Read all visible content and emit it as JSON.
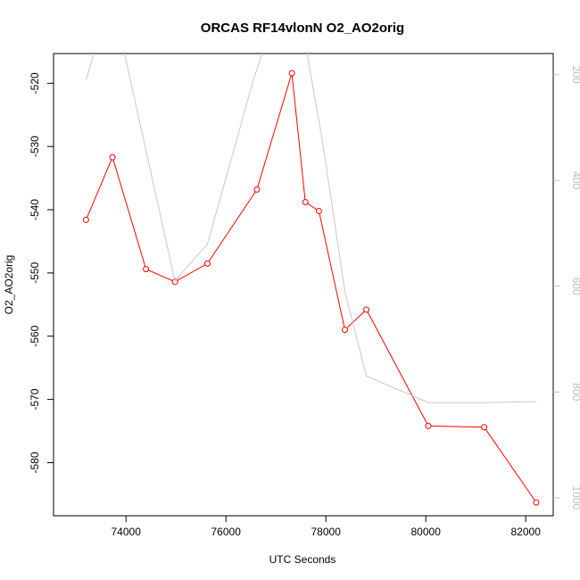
{
  "chart_data": {
    "type": "line",
    "title": "ORCAS RF14vlonN O2_AO2orig",
    "xlabel": "UTC Seconds",
    "ylabel": "O2_AO2orig",
    "xlim": [
      72550,
      82550
    ],
    "ylim": [
      -588.4,
      -515.3
    ],
    "y2lim": [
      1034,
      160
    ],
    "x_ticks": [
      74000,
      76000,
      78000,
      80000,
      82000
    ],
    "y_ticks": [
      -580,
      -570,
      -560,
      -550,
      -540,
      -530,
      -520
    ],
    "y2_ticks": [
      200,
      400,
      600,
      800,
      1000
    ],
    "grid": false,
    "series": [
      {
        "color": "#ff0000",
        "marker": "open-circle",
        "axis": "left",
        "x": [
          73200,
          73730,
          74400,
          74980,
          75630,
          76620,
          77320,
          77590,
          77860,
          78380,
          78810,
          80050,
          81170,
          82210
        ],
        "y": [
          -541.6,
          -531.7,
          -549.4,
          -551.4,
          -548.5,
          -536.8,
          -518.4,
          -538.8,
          -540.2,
          -559.0,
          -555.8,
          -574.2,
          -574.4,
          -586.3
        ]
      },
      {
        "color": "#c8c8c8",
        "marker": "none",
        "axis": "right",
        "x": [
          73200,
          73480,
          73900,
          74980,
          75630,
          76550,
          76870,
          77550,
          77940,
          78380,
          78810,
          80050,
          81170,
          82210
        ],
        "y": [
          210,
          120,
          130,
          590,
          520,
          210,
          120,
          120,
          330,
          610,
          770,
          820,
          820,
          818
        ]
      }
    ]
  }
}
